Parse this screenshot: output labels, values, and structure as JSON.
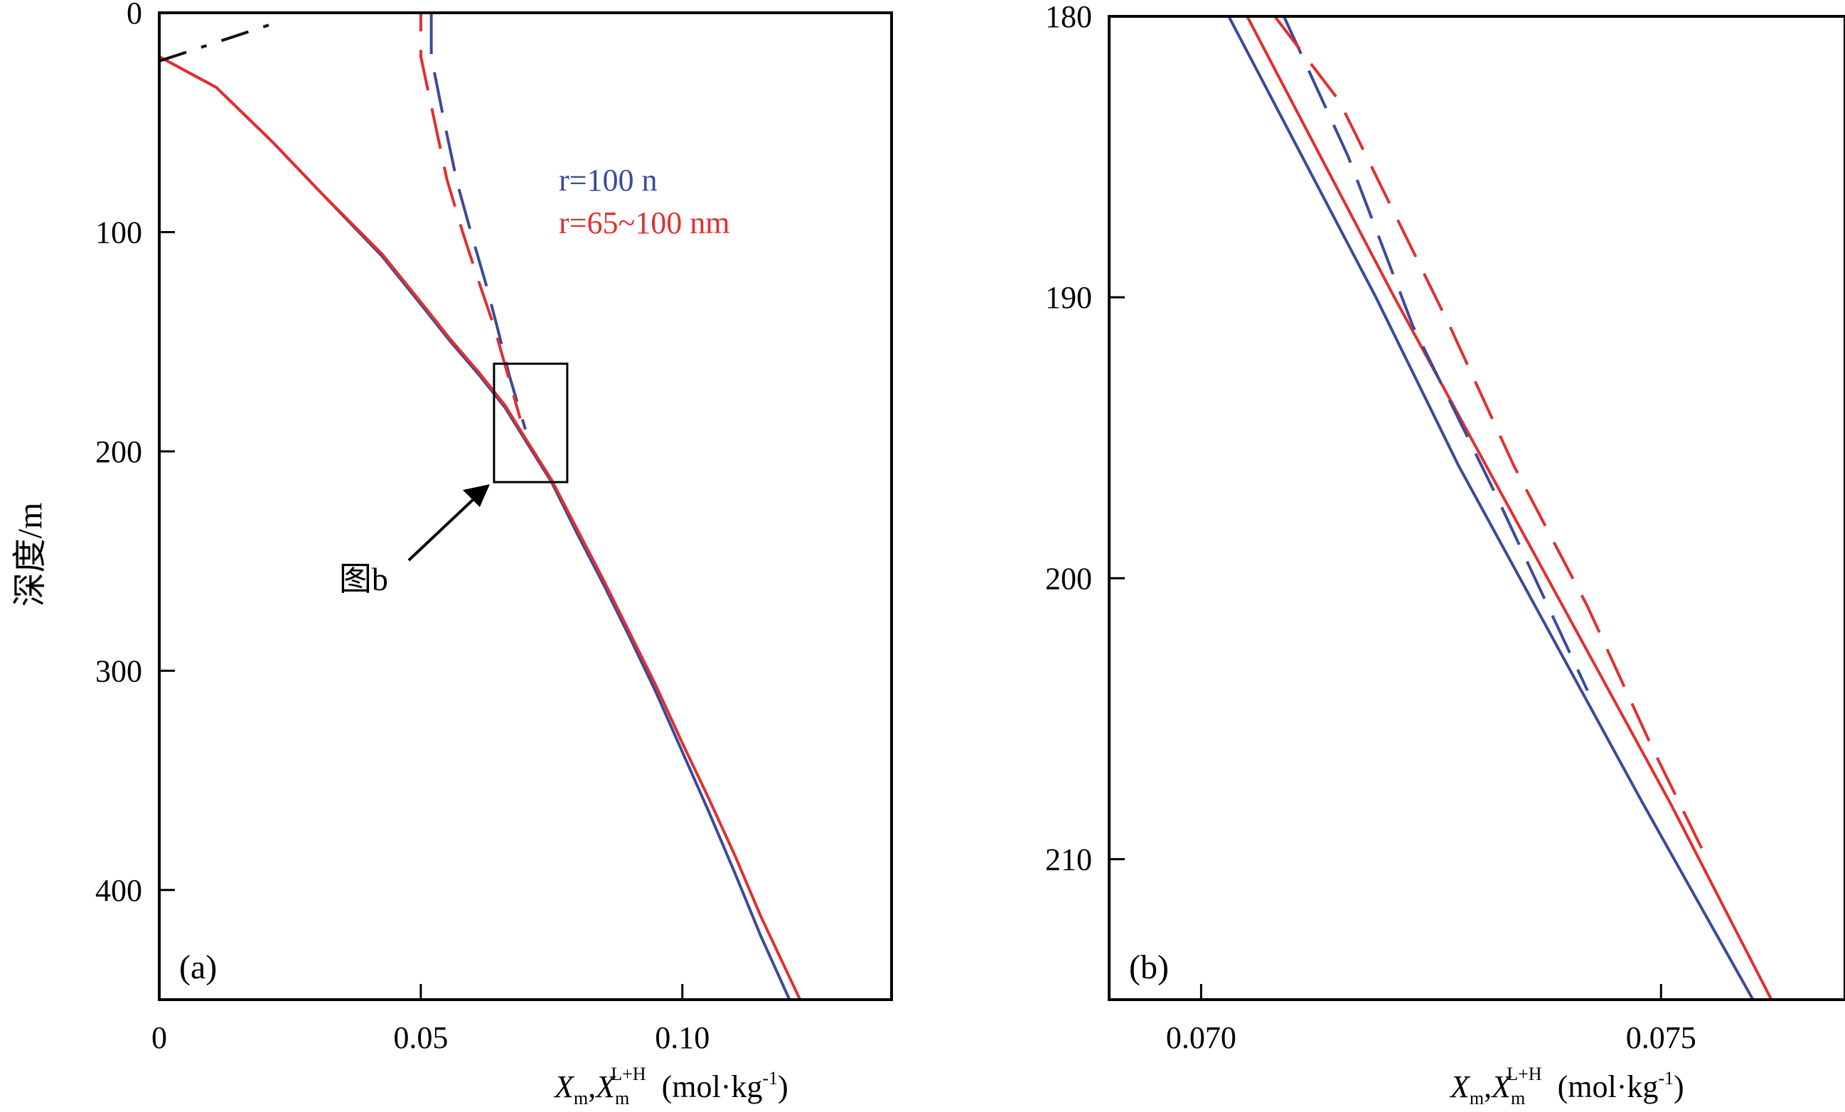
{
  "shared": {
    "ylabel": "深度/m",
    "xlabel_parts": {
      "x": "X",
      "m": "m",
      "sep": ",",
      "sup": "L+H",
      "unit": "(mol·kg",
      "exp": "-1",
      "close": ")"
    }
  },
  "chart_data": [
    {
      "id": "a",
      "type": "line",
      "panel_label": "(a)",
      "xlim": [
        0,
        0.14
      ],
      "ylim": [
        450,
        0
      ],
      "xticks": [
        0,
        0.05,
        0.1
      ],
      "xtick_labels": [
        "0",
        "0.05",
        "0.10"
      ],
      "yticks": [
        0,
        100,
        200,
        300,
        400
      ],
      "ytick_labels": [
        "0",
        "100",
        "200",
        "300",
        "400"
      ],
      "legend": [
        {
          "label": "r=100 n",
          "color": "#3b4a9a"
        },
        {
          "label": "r=65~100 nm",
          "color": "#e03030"
        }
      ],
      "annotation": {
        "label": "图b",
        "box_x": [
          0.064,
          0.078
        ],
        "box_y": [
          160,
          214
        ]
      },
      "series": [
        {
          "color": "#3b4a9a",
          "style": "solid",
          "x": [
            0,
            0,
            0.0109,
            0.0217,
            0.0313,
            0.0426,
            0.0507,
            0.0557,
            0.0611,
            0.0661,
            0.07,
            0.075,
            0.08,
            0.085,
            0.09,
            0.095,
            0.1,
            0.105,
            0.11,
            0.115,
            0.1205
          ],
          "y": [
            0,
            20,
            34,
            59,
            83,
            111,
            135,
            150,
            165,
            180,
            195,
            214,
            238,
            261,
            285,
            310,
            337,
            364,
            392,
            421,
            450
          ]
        },
        {
          "color": "#e03030",
          "style": "solid",
          "x": [
            0,
            0,
            0.0109,
            0.0217,
            0.0313,
            0.0426,
            0.0507,
            0.0557,
            0.0611,
            0.0661,
            0.07,
            0.075,
            0.08,
            0.085,
            0.09,
            0.095,
            0.1,
            0.105,
            0.11,
            0.115,
            0.1225
          ],
          "y": [
            0,
            20,
            34,
            59,
            83,
            110,
            134,
            149,
            164,
            179,
            194,
            213,
            236,
            259,
            283,
            307,
            333,
            358,
            384,
            412,
            450
          ]
        },
        {
          "color": "#3b4a9a",
          "style": "dashed",
          "x": [
            0.052,
            0.052,
            0.0545,
            0.057,
            0.0598,
            0.0625,
            0.0648,
            0.067,
            0.07
          ],
          "y": [
            0,
            20,
            50,
            78,
            102,
            124,
            145,
            166,
            190
          ]
        },
        {
          "color": "#e03030",
          "style": "dashed",
          "x": [
            0,
            0.05,
            0.05,
            0.0525,
            0.055,
            0.058,
            0.061,
            0.064,
            0.0665,
            0.069
          ],
          "y": [
            0,
            0,
            20,
            48,
            76,
            100,
            122,
            143,
            164,
            185
          ]
        },
        {
          "color": "#111111",
          "style": "dashdot",
          "x": [
            0,
            0.023
          ],
          "y": [
            22,
            4
          ]
        }
      ]
    },
    {
      "id": "b",
      "type": "line",
      "panel_label": "(b)",
      "xlim": [
        0.069,
        0.077
      ],
      "ylim": [
        215,
        180
      ],
      "xticks": [
        0.07,
        0.075
      ],
      "xtick_labels": [
        "0.070",
        "0.075"
      ],
      "yticks": [
        180,
        190,
        200,
        210
      ],
      "ytick_labels": [
        "180",
        "190",
        "200",
        "210"
      ],
      "series": [
        {
          "color": "#3b4a9a",
          "style": "solid",
          "x": [
            0.0703,
            0.0711,
            0.0719,
            0.0728,
            0.0738,
            0.0748,
            0.076
          ],
          "y": [
            180,
            185,
            190,
            196,
            202,
            208,
            215
          ]
        },
        {
          "color": "#e03030",
          "style": "solid",
          "x": [
            0.0705,
            0.0713,
            0.0721,
            0.0731,
            0.0741,
            0.0751,
            0.0762
          ],
          "y": [
            180,
            185,
            190,
            196,
            202,
            208,
            215
          ]
        },
        {
          "color": "#3b4a9a",
          "style": "dashed",
          "x": [
            0.0709,
            0.0716,
            0.0723,
            0.0732,
            0.0742
          ],
          "y": [
            180,
            185,
            191,
            197,
            204
          ]
        },
        {
          "color": "#e03030",
          "style": "dashed",
          "x": [
            0.0708,
            0.0715,
            0.0721,
            0.0727,
            0.0734,
            0.0742,
            0.0749,
            0.0755
          ],
          "y": [
            180,
            183,
            187,
            191,
            196,
            201,
            206,
            210
          ]
        }
      ]
    }
  ]
}
